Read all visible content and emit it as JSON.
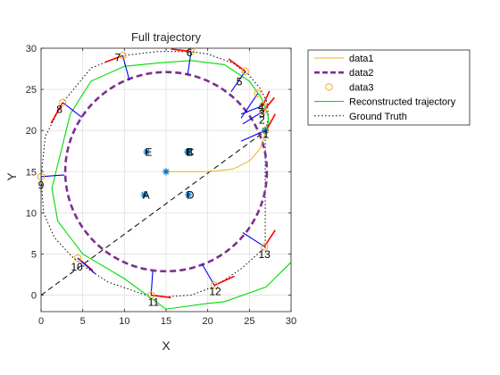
{
  "figure": {
    "title": "Full trajectory",
    "xlabel": "X",
    "ylabel": "Y"
  },
  "chart_data": {
    "type": "line",
    "title": "Full trajectory",
    "xlabel": "X",
    "ylabel": "Y",
    "xlim": [
      0,
      30
    ],
    "ylim": [
      -2,
      30
    ],
    "xticks": [
      0,
      5,
      10,
      15,
      20,
      25,
      30
    ],
    "yticks": [
      0,
      5,
      10,
      15,
      20,
      25,
      30
    ],
    "grid": true,
    "legend_position": "outside-top-right",
    "legend": [
      "data1",
      "data2",
      "data3",
      "Reconstructed trajectory",
      "Ground Truth"
    ],
    "colors": {
      "data1": "#EDB120",
      "data2": "#7E2F8E",
      "data3": "#EDB120",
      "reconstructed": "#00DD00",
      "ground_truth": "#000000",
      "diagonal": "#000000",
      "blue_segments": "#0000FF",
      "red_segments": "#FF0000",
      "star": "#0072BD"
    },
    "series": [
      {
        "name": "data1",
        "style": "solid-thin",
        "x": [
          15,
          20,
          23,
          25,
          26.3,
          27
        ],
        "y": [
          15,
          15,
          15.3,
          16.3,
          17.8,
          20
        ]
      },
      {
        "name": "Reconstructed trajectory",
        "style": "solid-thin",
        "x": [
          27,
          27.3,
          27.2,
          26.4,
          25,
          22,
          18,
          14,
          10,
          6,
          3.5,
          1.3,
          2,
          3.5,
          5,
          10,
          15,
          20,
          22,
          27,
          28,
          30,
          30.2,
          30.2
        ],
        "y": [
          20,
          21,
          22,
          24,
          26,
          28,
          28.5,
          28.2,
          27.8,
          26,
          22,
          13,
          9,
          7,
          5,
          2,
          -1.7,
          -1,
          -0.8,
          1,
          2,
          4,
          8,
          17
        ]
      },
      {
        "name": "Ground Truth",
        "style": "dotted",
        "x": [
          26.9,
          27.3,
          27.1,
          26.3,
          24.9,
          23,
          20,
          17.9,
          14,
          9.8,
          6,
          2.6,
          0.5,
          0,
          0.3,
          1.6,
          3.7,
          5.3,
          8,
          12.6,
          15,
          18,
          20.9,
          24,
          26.9,
          26.9,
          26.9
        ],
        "y": [
          19.7,
          21.7,
          23.5,
          25.1,
          26.8,
          28.2,
          29.3,
          29.6,
          29.6,
          29.1,
          27.6,
          23.4,
          19.3,
          14.2,
          10,
          7,
          4.7,
          3.4,
          1.6,
          0,
          -0.2,
          0,
          1.1,
          3.2,
          5.8,
          12,
          19.7
        ]
      }
    ],
    "circle_center": [
      15,
      15
    ],
    "circle_radius": 12.1,
    "diagonal_line": {
      "x": [
        0,
        27
      ],
      "y": [
        0,
        20
      ]
    },
    "center_marker": {
      "x": 15,
      "y": 15
    },
    "data3_markers": {
      "x": [
        26.9,
        26.6,
        26.6,
        26.0,
        24.5,
        18.0,
        9.8,
        2.6,
        0.0,
        4.4,
        13.2,
        20.8,
        26.8
      ],
      "y": [
        20.0,
        22.3,
        23.0,
        24.5,
        27.2,
        29.6,
        29.1,
        23.4,
        14.4,
        4.5,
        0.0,
        1.2,
        5.9
      ]
    },
    "waypoints": [
      {
        "label": "1",
        "x": 27.0,
        "y": 19.6
      },
      {
        "label": "2",
        "x": 26.5,
        "y": 21.3
      },
      {
        "label": "3",
        "x": 26.5,
        "y": 22.1
      },
      {
        "label": "4",
        "x": 26.4,
        "y": 22.9
      },
      {
        "label": "5",
        "x": 23.8,
        "y": 26.0
      },
      {
        "label": "6",
        "x": 17.8,
        "y": 29.5
      },
      {
        "label": "7",
        "x": 9.2,
        "y": 28.9
      },
      {
        "label": "8",
        "x": 2.2,
        "y": 22.6
      },
      {
        "label": "9",
        "x": 0.0,
        "y": 13.4
      },
      {
        "label": "10",
        "x": 4.3,
        "y": 3.5
      },
      {
        "label": "11",
        "x": 13.5,
        "y": -0.8
      },
      {
        "label": "12",
        "x": 20.9,
        "y": 0.5
      },
      {
        "label": "13",
        "x": 26.8,
        "y": 5.0
      }
    ],
    "landmarks": [
      {
        "label": "E",
        "x": 12.9,
        "y": 17.4
      },
      {
        "label": "B",
        "x": 17.8,
        "y": 17.4
      },
      {
        "label": "C",
        "x": 17.9,
        "y": 17.4
      },
      {
        "label": "A",
        "x": 12.6,
        "y": 12.2
      },
      {
        "label": "D",
        "x": 17.9,
        "y": 12.2
      }
    ],
    "blue_segments": [
      [
        26.9,
        20.0,
        24.0,
        18.7
      ],
      [
        26.6,
        22.3,
        24.2,
        20.8
      ],
      [
        26.6,
        23.0,
        24.0,
        22.0
      ],
      [
        26.0,
        24.5,
        24.0,
        21.5
      ],
      [
        24.5,
        27.2,
        22.8,
        24.7
      ],
      [
        18.0,
        29.6,
        17.6,
        26.8
      ],
      [
        9.8,
        29.1,
        10.6,
        26.1
      ],
      [
        2.6,
        23.4,
        4.9,
        21.6
      ],
      [
        0.0,
        14.4,
        2.8,
        14.6
      ],
      [
        4.4,
        4.5,
        6.5,
        2.6
      ],
      [
        13.2,
        0.0,
        13.4,
        2.9
      ],
      [
        20.8,
        1.2,
        19.3,
        3.8
      ],
      [
        26.8,
        5.9,
        24.2,
        7.6
      ]
    ],
    "red_segments": [
      [
        27.0,
        20.0,
        28.1,
        22.0
      ],
      [
        26.6,
        22.3,
        28.0,
        24.0
      ],
      [
        26.6,
        23.0,
        27.4,
        24.8
      ],
      [
        24.5,
        27.2,
        22.5,
        28.7
      ],
      [
        18.0,
        29.6,
        15.6,
        29.9
      ],
      [
        9.8,
        29.1,
        7.7,
        28.3
      ],
      [
        2.6,
        23.4,
        1.2,
        20.9
      ],
      [
        0.0,
        14.4,
        -0.1,
        12.0
      ],
      [
        4.4,
        4.5,
        6.2,
        3.0
      ],
      [
        13.2,
        0.0,
        15.6,
        -0.3
      ],
      [
        20.8,
        1.2,
        23.2,
        2.3
      ],
      [
        26.8,
        5.9,
        28.1,
        7.9
      ]
    ]
  }
}
